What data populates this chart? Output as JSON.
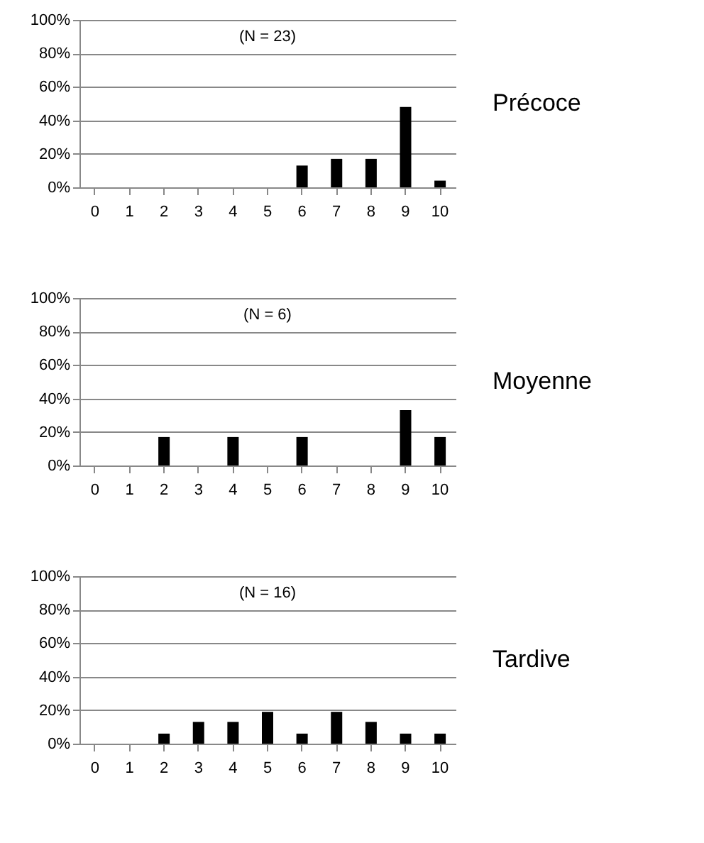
{
  "chart_data": [
    {
      "type": "bar",
      "annotations": [
        "(N = 23)",
        "Précoce"
      ],
      "categories": [
        "0",
        "1",
        "2",
        "3",
        "4",
        "5",
        "6",
        "7",
        "8",
        "9",
        "10"
      ],
      "series": [
        {
          "color": "#000000",
          "values": [
            0,
            0,
            0,
            0,
            0,
            0,
            13,
            17,
            17,
            48,
            4
          ]
        }
      ],
      "ylim": [
        0,
        100
      ],
      "yticks": [
        {
          "value": 0,
          "label": "0%"
        },
        {
          "value": 20,
          "label": "20%"
        },
        {
          "value": 40,
          "label": "40%"
        },
        {
          "value": 60,
          "label": "60%"
        },
        {
          "value": 80,
          "label": "80%"
        },
        {
          "value": 100,
          "label": "100%"
        }
      ],
      "grid": "y"
    },
    {
      "type": "bar",
      "annotations": [
        "(N = 6)",
        "Moyenne"
      ],
      "categories": [
        "0",
        "1",
        "2",
        "3",
        "4",
        "5",
        "6",
        "7",
        "8",
        "9",
        "10"
      ],
      "series": [
        {
          "color": "#000000",
          "values": [
            0,
            0,
            17,
            0,
            17,
            0,
            17,
            0,
            0,
            33,
            17
          ]
        }
      ],
      "ylim": [
        0,
        100
      ],
      "yticks": [
        {
          "value": 0,
          "label": "0%"
        },
        {
          "value": 20,
          "label": "20%"
        },
        {
          "value": 40,
          "label": "40%"
        },
        {
          "value": 60,
          "label": "60%"
        },
        {
          "value": 80,
          "label": "80%"
        },
        {
          "value": 100,
          "label": "100%"
        }
      ],
      "grid": "y"
    },
    {
      "type": "bar",
      "annotations": [
        "(N = 16)",
        "Tardive"
      ],
      "categories": [
        "0",
        "1",
        "2",
        "3",
        "4",
        "5",
        "6",
        "7",
        "8",
        "9",
        "10"
      ],
      "series": [
        {
          "color": "#000000",
          "values": [
            0,
            0,
            6,
            13,
            13,
            19,
            6,
            19,
            13,
            6,
            6
          ]
        }
      ],
      "ylim": [
        0,
        100
      ],
      "yticks": [
        {
          "value": 0,
          "label": "0%"
        },
        {
          "value": 20,
          "label": "20%"
        },
        {
          "value": 40,
          "label": "40%"
        },
        {
          "value": 60,
          "label": "60%"
        },
        {
          "value": 80,
          "label": "80%"
        },
        {
          "value": 100,
          "label": "100%"
        }
      ],
      "grid": "y"
    }
  ]
}
